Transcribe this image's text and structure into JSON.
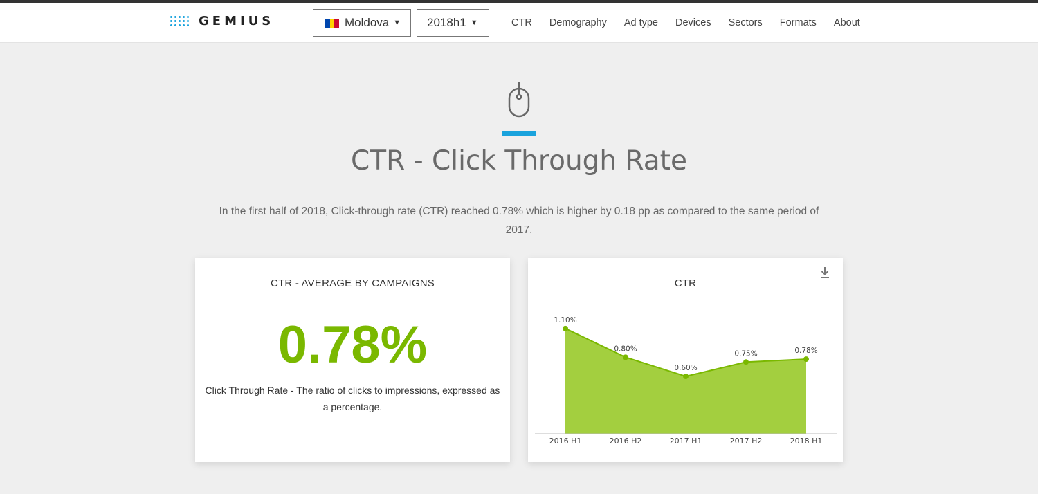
{
  "header": {
    "logo_text": "GEMIUS",
    "country_select": {
      "value": "Moldova",
      "flag_colors": [
        "#0046ae",
        "#ffd200",
        "#cc092f"
      ]
    },
    "period_select": {
      "value": "2018h1"
    },
    "nav": [
      "CTR",
      "Demography",
      "Ad type",
      "Devices",
      "Sectors",
      "Formats",
      "About"
    ]
  },
  "hero": {
    "icon": "mouse-icon",
    "title": "CTR - Click Through Rate",
    "intro": "In the first half of 2018, Click-through rate (CTR) reached 0.78% which is higher by 0.18 pp as compared to the same period of 2017."
  },
  "avg_card": {
    "title": "CTR - AVERAGE BY CAMPAIGNS",
    "value": "0.78%",
    "description": "Click Through Rate - The ratio of clicks to impressions, expressed as a percentage."
  },
  "chart_card": {
    "title": "CTR",
    "download_icon": "download-icon"
  },
  "colors": {
    "accent": "#1aa3dd",
    "green": "#7ab800",
    "area_fill": "#a3cf3f",
    "line": "#7ab800"
  },
  "chart_data": {
    "type": "area",
    "title": "CTR",
    "categories": [
      "2016 H1",
      "2016 H2",
      "2017 H1",
      "2017 H2",
      "2018 H1"
    ],
    "values": [
      1.1,
      0.8,
      0.6,
      0.75,
      0.78
    ],
    "labels": [
      "1.10%",
      "0.80%",
      "0.60%",
      "0.75%",
      "0.78%"
    ],
    "ylim": [
      0,
      1.2
    ],
    "grid": false,
    "legend": "none"
  }
}
